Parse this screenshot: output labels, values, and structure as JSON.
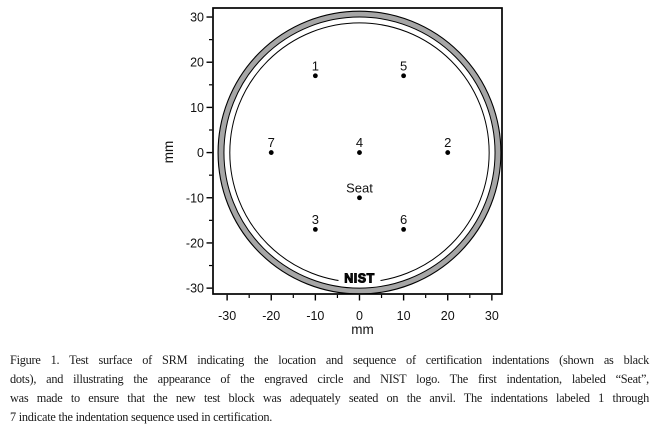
{
  "figure": {
    "caption_lines": [
      "Figure 1.  Test surface of SRM indicating the location and sequence of certification indentations (shown as black",
      "dots), and illustrating the appearance of the engraved circle and NIST logo.  The first indentation, labeled “Seat”,",
      "was made to ensure that the new test block was adequately seated on the anvil.  The indentations labeled 1 through",
      "7 indicate the indentation sequence used in certification."
    ]
  },
  "chart_data": {
    "type": "scatter",
    "title": "",
    "xlabel": "mm",
    "ylabel": "mm",
    "xlim": [
      -33.2,
      32.3
    ],
    "ylim": [
      -31.3,
      32.0
    ],
    "grid": false,
    "xticks_major": [
      -30,
      -20,
      -10,
      0,
      10,
      20,
      30
    ],
    "xticks_minor": [
      -25,
      -15,
      -5,
      5,
      15,
      25
    ],
    "yticks_major": [
      -30,
      -20,
      -10,
      0,
      10,
      20,
      30
    ],
    "yticks_minor": [
      -25,
      -15,
      -5,
      5,
      15,
      25
    ],
    "points": [
      {
        "label": "1",
        "x": -10,
        "y": 17
      },
      {
        "label": "5",
        "x": 10,
        "y": 17
      },
      {
        "label": "7",
        "x": -20,
        "y": 0
      },
      {
        "label": "4",
        "x": 0,
        "y": 0
      },
      {
        "label": "2",
        "x": 20,
        "y": 0
      },
      {
        "label": "Seat",
        "x": 0,
        "y": -10
      },
      {
        "label": "3",
        "x": -10,
        "y": -17
      },
      {
        "label": "6",
        "x": 10,
        "y": -17
      }
    ],
    "point_color": "#000000",
    "circles": {
      "outer_ring": {
        "r_outer": 31.3,
        "r_inner": 30.0,
        "fill": "#a6a6a6"
      },
      "engraved": {
        "r": 28.7
      }
    },
    "logo": {
      "text": "NIST",
      "x": 0,
      "y": -27.7
    }
  }
}
